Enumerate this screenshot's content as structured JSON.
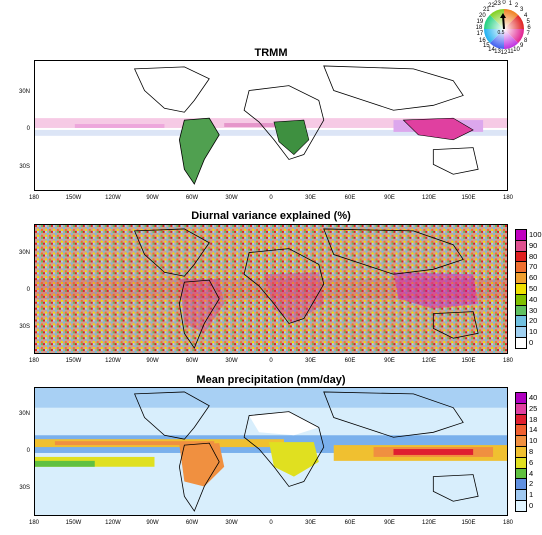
{
  "panels": [
    {
      "id": "trmm",
      "title": "TRMM",
      "y_ticks": [
        "30N",
        "0",
        "30S"
      ],
      "x_ticks": [
        "180",
        "150W",
        "120W",
        "90W",
        "60W",
        "30W",
        "0",
        "30E",
        "60E",
        "90E",
        "120E",
        "150E",
        "180"
      ]
    },
    {
      "id": "variance",
      "title": "Diurnal variance explained (%)",
      "y_ticks": [
        "30N",
        "0",
        "30S"
      ],
      "x_ticks": [
        "180",
        "150W",
        "120W",
        "90W",
        "60W",
        "30W",
        "0",
        "30E",
        "60E",
        "90E",
        "120E",
        "150E",
        "180"
      ],
      "colorbar": {
        "labels": [
          "100",
          "90",
          "80",
          "70",
          "60",
          "50",
          "40",
          "30",
          "20",
          "10",
          "0"
        ],
        "colors": [
          "#c000c0",
          "#e05090",
          "#e02020",
          "#f07030",
          "#f0a030",
          "#f0e000",
          "#80c000",
          "#60c060",
          "#70c0e0",
          "#a0d0f0",
          "#ffffff"
        ]
      }
    },
    {
      "id": "mean",
      "title": "Mean precipitation (mm/day)",
      "y_ticks": [
        "30N",
        "0",
        "30S"
      ],
      "x_ticks": [
        "180",
        "150W",
        "120W",
        "90W",
        "60W",
        "30W",
        "0",
        "30E",
        "60E",
        "90E",
        "120E",
        "150E",
        "180"
      ],
      "colorbar": {
        "labels": [
          "40",
          "25",
          "18",
          "14",
          "10",
          "8",
          "6",
          "4",
          "2",
          "1",
          "0"
        ],
        "colors": [
          "#b000c0",
          "#e040a0",
          "#e02030",
          "#f06030",
          "#f09040",
          "#f0c030",
          "#e0e020",
          "#60c040",
          "#6090e0",
          "#a0c8f0",
          "#e0f4ff"
        ]
      }
    }
  ],
  "phase_wheel": {
    "center_label": "0.5",
    "hours": [
      "0",
      "1",
      "2",
      "3",
      "4",
      "5",
      "6",
      "7",
      "8",
      "9",
      "10",
      "11",
      "12",
      "13",
      "14",
      "15",
      "16",
      "17",
      "18",
      "19",
      "20",
      "21",
      "22",
      "23"
    ]
  }
}
